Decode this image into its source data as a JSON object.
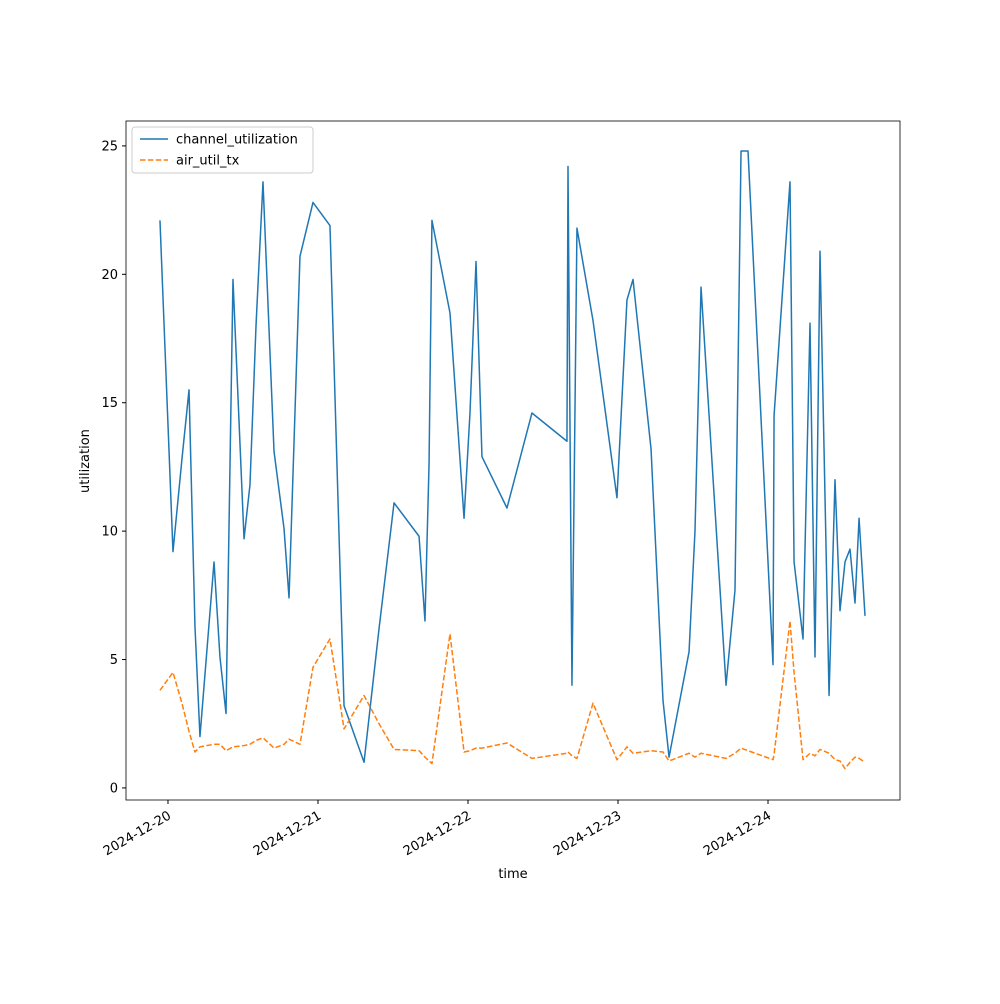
{
  "chart_data": {
    "type": "line",
    "xlabel": "time",
    "ylabel": "utilization",
    "x": [
      "2024-12-19T22:43",
      "2024-12-20T00:48",
      "2024-12-20T02:14",
      "2024-12-20T03:22",
      "2024-12-20T04:19",
      "2024-12-20T05:07",
      "2024-12-20T07:22",
      "2024-12-20T08:19",
      "2024-12-20T09:17",
      "2024-12-20T10:24",
      "2024-12-20T12:10",
      "2024-12-20T13:07",
      "2024-12-20T14:05",
      "2024-12-20T15:12",
      "2024-12-20T16:58",
      "2024-12-20T18:34",
      "2024-12-20T19:22",
      "2024-12-20T21:07",
      "2024-12-20T23:12",
      "2024-12-21T01:55",
      "2024-12-21T04:10",
      "2024-12-21T07:22",
      "2024-12-21T09:46",
      "2024-12-21T12:10",
      "2024-12-21T16:10",
      "2024-12-21T17:07",
      "2024-12-21T17:46",
      "2024-12-21T18:14",
      "2024-12-21T21:07",
      "2024-12-21T23:22",
      "2024-12-22T00:19",
      "2024-12-22T01:17",
      "2024-12-22T02:14",
      "2024-12-22T06:14",
      "2024-12-22T10:14",
      "2024-12-22T15:50",
      "2024-12-22T16:00",
      "2024-12-22T16:38",
      "2024-12-22T17:26",
      "2024-12-22T20:00",
      "2024-12-22T23:50",
      "2024-12-23T01:26",
      "2024-12-23T02:24",
      "2024-12-23T05:17",
      "2024-12-23T07:12",
      "2024-12-23T08:10",
      "2024-12-23T11:22",
      "2024-12-23T12:19",
      "2024-12-23T13:17",
      "2024-12-23T17:17",
      "2024-12-23T18:43",
      "2024-12-23T19:41",
      "2024-12-23T20:48",
      "2024-12-24T00:48",
      "2024-12-24T00:58",
      "2024-12-24T03:31",
      "2024-12-24T04:10",
      "2024-12-24T05:36",
      "2024-12-24T06:43",
      "2024-12-24T07:31",
      "2024-12-24T08:19",
      "2024-12-24T09:46",
      "2024-12-24T10:43",
      "2024-12-24T11:31",
      "2024-12-24T12:19",
      "2024-12-24T13:07",
      "2024-12-24T13:55",
      "2024-12-24T14:34",
      "2024-12-24T15:31"
    ],
    "series": [
      {
        "name": "channel_utilization",
        "color": "#1f77b4",
        "dash": "solid",
        "values": [
          22.1,
          9.2,
          12.8,
          15.5,
          6.3,
          2.0,
          8.8,
          5.1,
          2.9,
          19.8,
          9.7,
          11.8,
          18.0,
          23.6,
          13.1,
          10.1,
          7.4,
          20.7,
          22.8,
          21.9,
          3.2,
          1.0,
          6.2,
          11.1,
          9.8,
          6.5,
          12.6,
          22.1,
          18.5,
          10.5,
          14.6,
          20.5,
          12.9,
          10.9,
          14.6,
          13.5,
          24.2,
          4.0,
          21.8,
          18.2,
          11.3,
          19.0,
          19.8,
          13.2,
          3.4,
          1.2,
          5.3,
          10.0,
          19.5,
          4.0,
          7.7,
          24.8,
          24.8,
          4.8,
          14.5,
          23.6,
          8.8,
          5.8,
          18.1,
          5.1,
          20.9,
          3.6,
          12.0,
          6.9,
          8.8,
          9.3,
          7.2,
          10.5,
          6.7
        ]
      },
      {
        "name": "air_util_tx",
        "color": "#ff7f0e",
        "dash": "dashed",
        "values": [
          3.8,
          4.5,
          3.3,
          2.2,
          1.4,
          1.6,
          1.7,
          1.7,
          1.45,
          1.6,
          1.65,
          1.7,
          1.85,
          1.95,
          1.55,
          1.7,
          1.9,
          1.7,
          4.7,
          5.8,
          2.3,
          3.6,
          2.5,
          1.5,
          1.45,
          1.2,
          1.05,
          0.95,
          6.0,
          1.4,
          1.45,
          1.55,
          1.55,
          1.75,
          1.15,
          1.35,
          1.4,
          1.25,
          1.15,
          3.3,
          1.1,
          1.6,
          1.35,
          1.45,
          1.4,
          1.05,
          1.35,
          1.2,
          1.35,
          1.15,
          1.35,
          1.55,
          1.45,
          1.1,
          1.3,
          6.5,
          4.5,
          1.1,
          1.35,
          1.25,
          1.5,
          1.35,
          1.1,
          1.05,
          0.75,
          1.0,
          1.2,
          1.15,
          1.0
        ]
      }
    ],
    "xlim": [
      "2024-12-19T17:17",
      "2024-12-24T21:07"
    ],
    "xticks": [
      "2024-12-20",
      "2024-12-21",
      "2024-12-22",
      "2024-12-23",
      "2024-12-24"
    ],
    "ylim": [
      -0.47,
      25.97
    ],
    "yticks": [
      0,
      5,
      10,
      15,
      20,
      25
    ],
    "legend": "upper left"
  }
}
